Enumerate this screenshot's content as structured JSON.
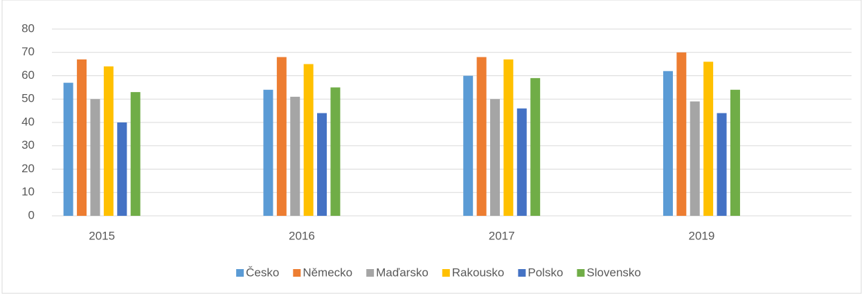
{
  "chart_data": {
    "type": "bar",
    "categories": [
      "2015",
      "2016",
      "2017",
      "2019"
    ],
    "series": [
      {
        "name": "Česko",
        "color": "#5b9bd5",
        "values": [
          57,
          54,
          60,
          62
        ]
      },
      {
        "name": "Německo",
        "color": "#ed7d31",
        "values": [
          67,
          68,
          68,
          70
        ]
      },
      {
        "name": "Maďarsko",
        "color": "#a5a5a5",
        "values": [
          50,
          51,
          50,
          49
        ]
      },
      {
        "name": "Rakousko",
        "color": "#ffc000",
        "values": [
          64,
          65,
          67,
          66
        ]
      },
      {
        "name": "Polsko",
        "color": "#4472c4",
        "values": [
          40,
          44,
          46,
          44
        ]
      },
      {
        "name": "Slovensko",
        "color": "#70ad47",
        "values": [
          53,
          55,
          59,
          54
        ]
      }
    ],
    "ylim": [
      0,
      80
    ],
    "yticks": [
      0,
      10,
      20,
      30,
      40,
      50,
      60,
      70,
      80
    ],
    "grid": true,
    "legend": "bottom"
  }
}
